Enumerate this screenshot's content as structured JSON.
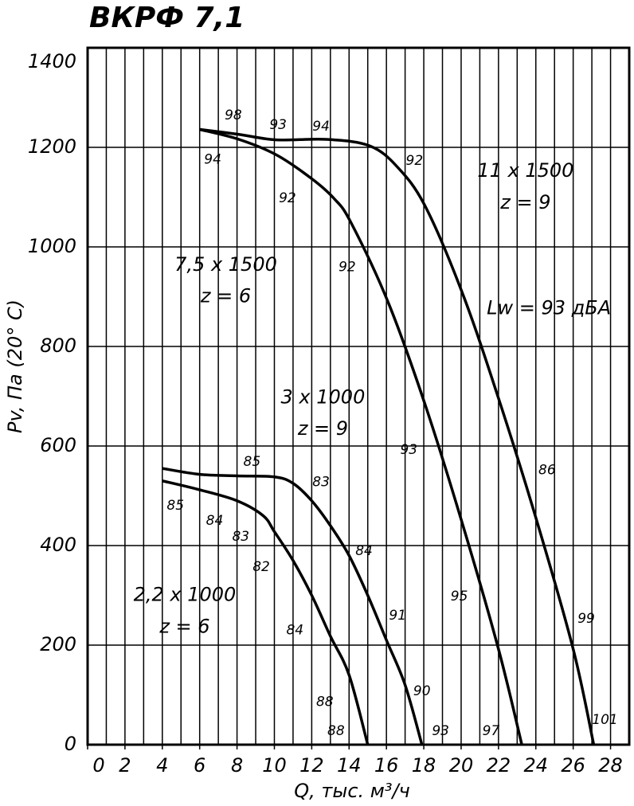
{
  "chart_data": {
    "type": "line",
    "title": "ВКРФ 7,1",
    "x_label": "Q, тыс. м³/ч",
    "y_label": "Pv, Па (20° C)",
    "xlim": [
      0,
      29
    ],
    "ylim": [
      0,
      1400
    ],
    "xticks": [
      0,
      2,
      4,
      6,
      8,
      10,
      12,
      14,
      16,
      18,
      20,
      22,
      24,
      26,
      28
    ],
    "yticks": [
      0,
      200,
      400,
      600,
      800,
      1000,
      1200,
      1400
    ],
    "xgrid": [
      1,
      2,
      3,
      4,
      5,
      6,
      7,
      8,
      9,
      10,
      11,
      12,
      13,
      14,
      15,
      16,
      17,
      18,
      19,
      20,
      21,
      22,
      23,
      24,
      25,
      26,
      27,
      28
    ],
    "grid": true,
    "color": "#000000",
    "series": [
      {
        "x": [
          4,
          6,
          8,
          9.4,
          10,
          11,
          12,
          13,
          14,
          15
        ],
        "values": [
          530,
          512,
          490,
          460,
          428,
          370,
          300,
          218,
          140,
          0
        ]
      },
      {
        "x": [
          4,
          6,
          8,
          10,
          11,
          12,
          13,
          14,
          15,
          16,
          17,
          17.9
        ],
        "values": [
          555,
          543,
          540,
          538,
          525,
          490,
          440,
          380,
          300,
          210,
          120,
          0
        ]
      },
      {
        "x": [
          6,
          8.1,
          10.1,
          12,
          13.2,
          14.1,
          16.1,
          18.1,
          20.1,
          22,
          23.25
        ],
        "values": [
          1236,
          1216,
          1185,
          1137,
          1097,
          1049,
          888,
          680,
          440,
          192,
          0
        ]
      },
      {
        "x": [
          6,
          8.1,
          10.1,
          12.8,
          15.1,
          16.6,
          18.1,
          20.1,
          22,
          24,
          26,
          27.1
        ],
        "values": [
          1236,
          1226,
          1215,
          1216,
          1203,
          1160,
          1080,
          904,
          696,
          456,
          192,
          0
        ]
      }
    ],
    "annotations": [
      {
        "text": "98",
        "x": 7.8,
        "y": 1264
      },
      {
        "text": "93",
        "x": 10.2,
        "y": 1245
      },
      {
        "text": "94",
        "x": 12.5,
        "y": 1242
      },
      {
        "text": "94",
        "x": 6.7,
        "y": 1175
      },
      {
        "text": "92",
        "x": 17.5,
        "y": 1173
      },
      {
        "text": "92",
        "x": 10.7,
        "y": 1098
      },
      {
        "text": "92",
        "x": 13.9,
        "y": 959
      },
      {
        "text": "93",
        "x": 17.2,
        "y": 592
      },
      {
        "text": "86",
        "x": 24.6,
        "y": 551
      },
      {
        "text": "85",
        "x": 8.8,
        "y": 568
      },
      {
        "text": "83",
        "x": 12.5,
        "y": 527
      },
      {
        "text": "85",
        "x": 4.7,
        "y": 480
      },
      {
        "text": "84",
        "x": 6.8,
        "y": 450
      },
      {
        "text": "83",
        "x": 8.2,
        "y": 418
      },
      {
        "text": "84",
        "x": 14.8,
        "y": 389
      },
      {
        "text": "82",
        "x": 9.3,
        "y": 357
      },
      {
        "text": "95",
        "x": 19.9,
        "y": 298
      },
      {
        "text": "91",
        "x": 16.6,
        "y": 259
      },
      {
        "text": "99",
        "x": 26.7,
        "y": 253
      },
      {
        "text": "84",
        "x": 11.1,
        "y": 230
      },
      {
        "text": "90",
        "x": 17.9,
        "y": 107
      },
      {
        "text": "88",
        "x": 12.7,
        "y": 86
      },
      {
        "text": "101",
        "x": 27.7,
        "y": 50
      },
      {
        "text": "88",
        "x": 13.3,
        "y": 27
      },
      {
        "text": "93",
        "x": 18.9,
        "y": 27
      },
      {
        "text": "97",
        "x": 21.6,
        "y": 27
      },
      {
        "text": "11 x 1500",
        "x": 23.45,
        "y": 1152
      },
      {
        "text": "z = 9",
        "x": 23.45,
        "y": 1088
      },
      {
        "text": "7,5 x 1500",
        "x": 7.4,
        "y": 963
      },
      {
        "text": "z = 6",
        "x": 7.4,
        "y": 900
      },
      {
        "text": "3 x 1000",
        "x": 12.6,
        "y": 697
      },
      {
        "text": "z = 9",
        "x": 12.6,
        "y": 634
      },
      {
        "text": "2,2 x 1000",
        "x": 5.2,
        "y": 300
      },
      {
        "text": "z = 6",
        "x": 5.2,
        "y": 236
      },
      {
        "text": "Lw = 93 дБА",
        "x": 24.7,
        "y": 876
      }
    ]
  }
}
